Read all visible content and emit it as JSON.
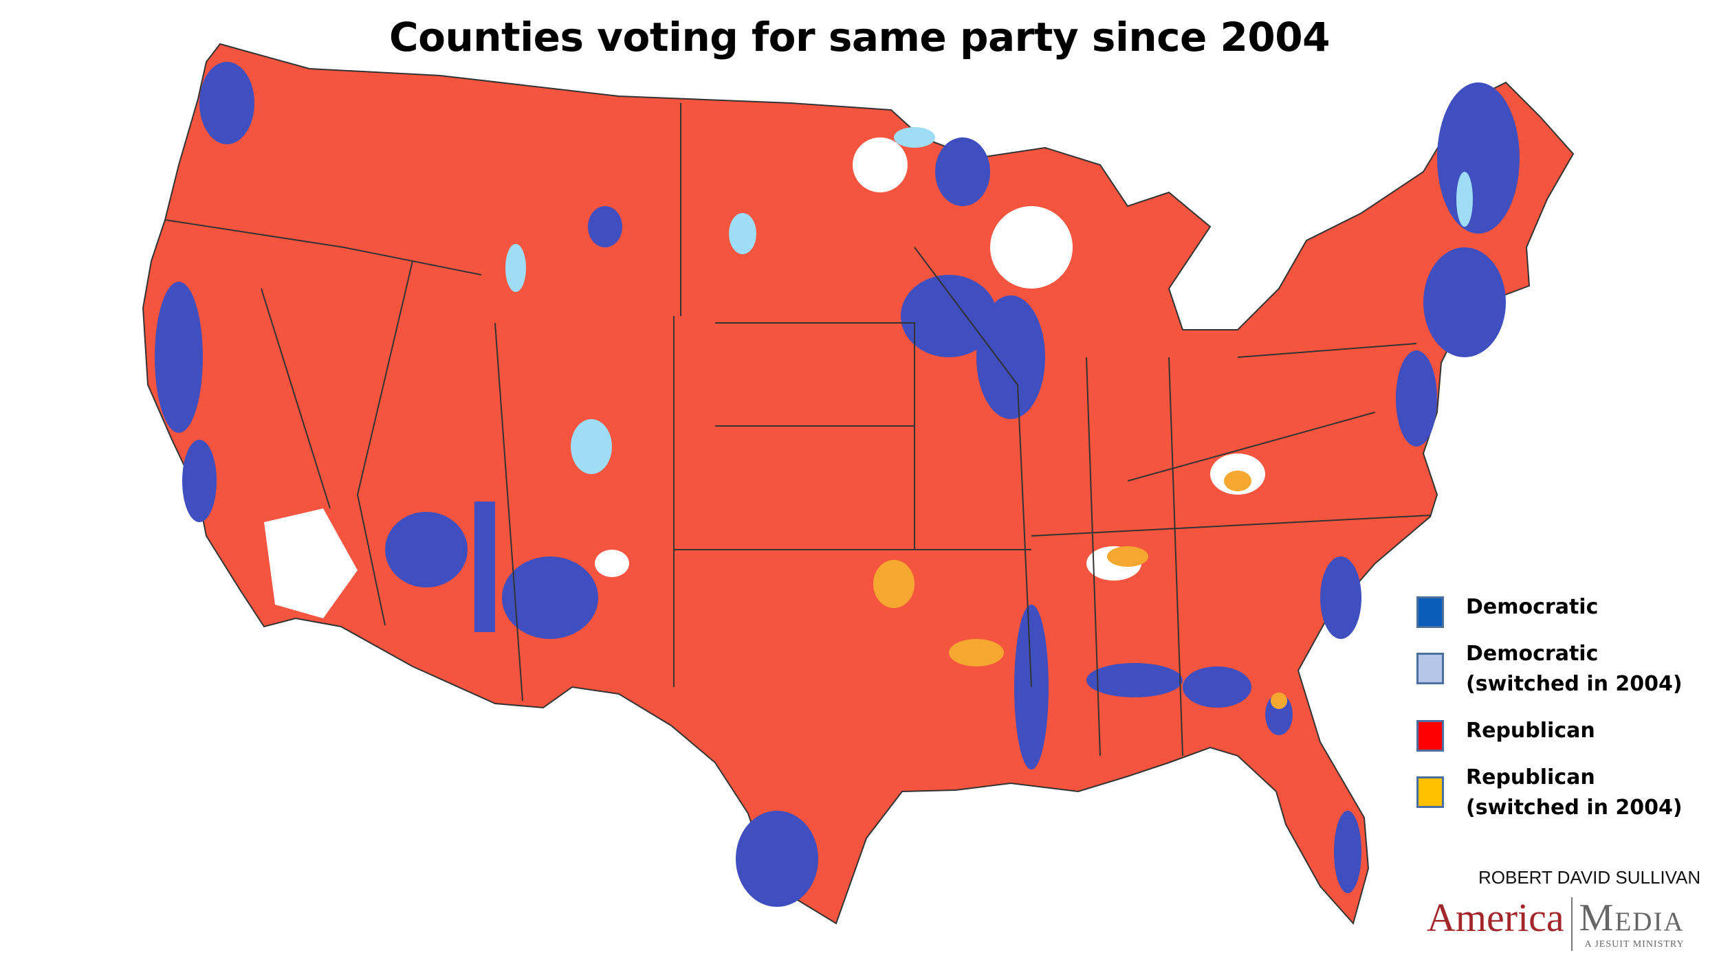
{
  "title": "Counties voting for same party since 2004",
  "legend": [
    {
      "label": "Democratic",
      "color": "#0a5cb8"
    },
    {
      "label": "Democratic (switched in 2004)",
      "color": "#b4c7e7"
    },
    {
      "label": "Republican",
      "color": "#ff0000"
    },
    {
      "label": "Republican (switched in 2004)",
      "color": "#ffc000"
    }
  ],
  "map_colors": {
    "republican": "#f5553f",
    "democratic": "#3f4fbf",
    "democratic_switched": "#9fdcf5",
    "republican_switched": "#f5a830",
    "no_change": "#ffffff"
  },
  "credit": "ROBERT DAVID SULLIVAN",
  "logo": {
    "left": "America",
    "right": "Media",
    "tagline": "A JESUIT MINISTRY"
  }
}
